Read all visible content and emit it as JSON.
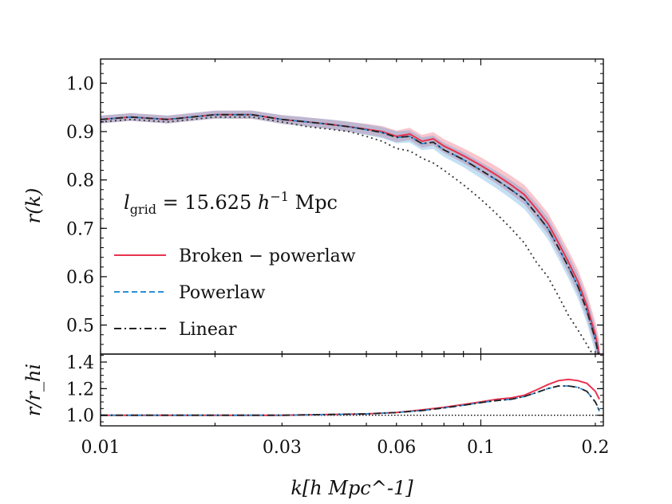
{
  "chart_data": [
    {
      "type": "line",
      "panel": "top",
      "ylabel": "r(k)",
      "xscale": "log",
      "xlim": [
        0.01,
        0.21
      ],
      "ylim": [
        0.44,
        1.05
      ],
      "yticks": [
        0.5,
        0.6,
        0.7,
        0.8,
        0.9,
        1.0
      ],
      "ytick_labels": [
        "0.5",
        "0.6",
        "0.7",
        "0.8",
        "0.9",
        "1.0"
      ],
      "annotation": "l_grid = 15.625 h^-1 Mpc",
      "annotation_parts": {
        "var": "l",
        "sub": "grid",
        "eq": " = 15.625 ",
        "h": "h",
        "exp": "−1",
        "unit": " Mpc"
      },
      "legend_position": "center-left",
      "series": [
        {
          "name": "Broken − powerlaw",
          "color": "#e8334f",
          "style": "solid",
          "band": true,
          "x": [
            0.01,
            0.012,
            0.015,
            0.02,
            0.025,
            0.03,
            0.035,
            0.04,
            0.045,
            0.05,
            0.055,
            0.06,
            0.065,
            0.07,
            0.075,
            0.08,
            0.085,
            0.09,
            0.1,
            0.11,
            0.12,
            0.13,
            0.14,
            0.15,
            0.16,
            0.17,
            0.18,
            0.19,
            0.2,
            0.205
          ],
          "y": [
            0.925,
            0.93,
            0.925,
            0.935,
            0.935,
            0.925,
            0.92,
            0.915,
            0.91,
            0.905,
            0.9,
            0.89,
            0.895,
            0.88,
            0.885,
            0.87,
            0.86,
            0.85,
            0.83,
            0.81,
            0.79,
            0.77,
            0.74,
            0.71,
            0.67,
            0.63,
            0.59,
            0.54,
            0.48,
            0.44
          ]
        },
        {
          "name": "Powerlaw",
          "color": "#2a8fd8",
          "style": "dashed",
          "band": true,
          "x": [
            0.01,
            0.012,
            0.015,
            0.02,
            0.025,
            0.03,
            0.035,
            0.04,
            0.045,
            0.05,
            0.055,
            0.06,
            0.065,
            0.07,
            0.075,
            0.08,
            0.085,
            0.09,
            0.1,
            0.11,
            0.12,
            0.13,
            0.14,
            0.15,
            0.16,
            0.17,
            0.18,
            0.19,
            0.2,
            0.205
          ],
          "y": [
            0.925,
            0.93,
            0.925,
            0.935,
            0.935,
            0.925,
            0.92,
            0.915,
            0.91,
            0.904,
            0.898,
            0.888,
            0.89,
            0.875,
            0.878,
            0.862,
            0.852,
            0.842,
            0.82,
            0.8,
            0.78,
            0.76,
            0.73,
            0.7,
            0.66,
            0.62,
            0.58,
            0.53,
            0.47,
            0.43
          ]
        },
        {
          "name": "Linear",
          "color": "#222222",
          "style": "dashdot",
          "band": false,
          "x": [
            0.01,
            0.012,
            0.015,
            0.02,
            0.025,
            0.03,
            0.035,
            0.04,
            0.045,
            0.05,
            0.055,
            0.06,
            0.065,
            0.07,
            0.075,
            0.08,
            0.085,
            0.09,
            0.1,
            0.11,
            0.12,
            0.13,
            0.14,
            0.15,
            0.16,
            0.17,
            0.18,
            0.19,
            0.2,
            0.205
          ],
          "y": [
            0.925,
            0.93,
            0.925,
            0.935,
            0.935,
            0.925,
            0.92,
            0.915,
            0.91,
            0.904,
            0.898,
            0.888,
            0.89,
            0.875,
            0.878,
            0.862,
            0.852,
            0.842,
            0.82,
            0.8,
            0.78,
            0.76,
            0.73,
            0.7,
            0.66,
            0.62,
            0.58,
            0.53,
            0.47,
            0.43
          ]
        },
        {
          "name": "",
          "color": "#333333",
          "style": "dotted",
          "band": false,
          "x": [
            0.01,
            0.012,
            0.015,
            0.02,
            0.025,
            0.03,
            0.035,
            0.04,
            0.045,
            0.05,
            0.055,
            0.06,
            0.065,
            0.07,
            0.075,
            0.08,
            0.09,
            0.1,
            0.11,
            0.12,
            0.13,
            0.14,
            0.15,
            0.16,
            0.17,
            0.18,
            0.19,
            0.2
          ],
          "y": [
            0.92,
            0.925,
            0.92,
            0.93,
            0.93,
            0.92,
            0.91,
            0.905,
            0.9,
            0.89,
            0.88,
            0.865,
            0.86,
            0.845,
            0.835,
            0.82,
            0.79,
            0.76,
            0.73,
            0.7,
            0.67,
            0.63,
            0.6,
            0.56,
            0.52,
            0.49,
            0.46,
            0.43
          ]
        }
      ]
    },
    {
      "type": "line",
      "panel": "bottom",
      "ylabel": "r/r_hi",
      "xlabel": "k[h Mpc^-1]",
      "xscale": "log",
      "xlim": [
        0.01,
        0.21
      ],
      "ylim": [
        0.92,
        1.46
      ],
      "yticks": [
        1.0,
        1.2,
        1.4
      ],
      "ytick_labels": [
        "1.0",
        "1.2",
        "1.4"
      ],
      "xticks": [
        0.01,
        0.03,
        0.06,
        0.1,
        0.2
      ],
      "xtick_labels": [
        "0.01",
        "0.03",
        "0.06",
        "0.1",
        "0.2"
      ],
      "reference_line": 1.0,
      "series": [
        {
          "name": "Broken − powerlaw",
          "color": "#e8334f",
          "style": "solid",
          "x": [
            0.01,
            0.02,
            0.03,
            0.04,
            0.05,
            0.06,
            0.07,
            0.08,
            0.09,
            0.1,
            0.11,
            0.12,
            0.13,
            0.14,
            0.15,
            0.16,
            0.17,
            0.18,
            0.19,
            0.2,
            0.205
          ],
          "y": [
            1.0,
            1.0,
            1.0,
            1.005,
            1.01,
            1.02,
            1.04,
            1.06,
            1.08,
            1.1,
            1.12,
            1.13,
            1.15,
            1.19,
            1.23,
            1.26,
            1.27,
            1.26,
            1.24,
            1.18,
            1.12
          ]
        },
        {
          "name": "Powerlaw",
          "color": "#2a8fd8",
          "style": "dashed",
          "x": [
            0.01,
            0.02,
            0.03,
            0.04,
            0.05,
            0.06,
            0.07,
            0.08,
            0.09,
            0.1,
            0.11,
            0.12,
            0.13,
            0.14,
            0.15,
            0.16,
            0.17,
            0.18,
            0.19,
            0.2,
            0.205
          ],
          "y": [
            1.0,
            1.0,
            1.0,
            1.005,
            1.01,
            1.02,
            1.035,
            1.055,
            1.075,
            1.095,
            1.11,
            1.12,
            1.14,
            1.17,
            1.2,
            1.22,
            1.22,
            1.21,
            1.18,
            1.1,
            1.03
          ]
        },
        {
          "name": "Linear",
          "color": "#222222",
          "style": "dashdot",
          "x": [
            0.01,
            0.02,
            0.03,
            0.04,
            0.05,
            0.06,
            0.07,
            0.08,
            0.09,
            0.1,
            0.11,
            0.12,
            0.13,
            0.14,
            0.15,
            0.16,
            0.17,
            0.18,
            0.19,
            0.2,
            0.205
          ],
          "y": [
            1.0,
            1.0,
            1.0,
            1.005,
            1.01,
            1.02,
            1.035,
            1.055,
            1.075,
            1.095,
            1.11,
            1.12,
            1.14,
            1.17,
            1.2,
            1.22,
            1.22,
            1.21,
            1.18,
            1.1,
            1.04
          ]
        }
      ]
    }
  ]
}
